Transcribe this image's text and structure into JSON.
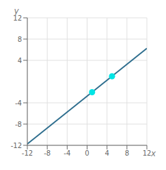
{
  "chart_data": {
    "type": "scatter",
    "xlabel": "x",
    "ylabel": "y",
    "xlim": [
      -12,
      12
    ],
    "ylim": [
      -12,
      12
    ],
    "xticks": [
      -12,
      -8,
      -4,
      0,
      4,
      8,
      12
    ],
    "yticks": [
      -12,
      -8,
      -4,
      4,
      8,
      12
    ],
    "grid": true,
    "series": [
      {
        "type": "line",
        "color": "#2e6e8e",
        "x": [
          -12,
          12
        ],
        "values": [
          -11.75,
          6.25
        ]
      },
      {
        "type": "scatter",
        "color": "#00e5e5",
        "x": [
          1,
          5
        ],
        "values": [
          -2,
          1
        ]
      }
    ]
  }
}
